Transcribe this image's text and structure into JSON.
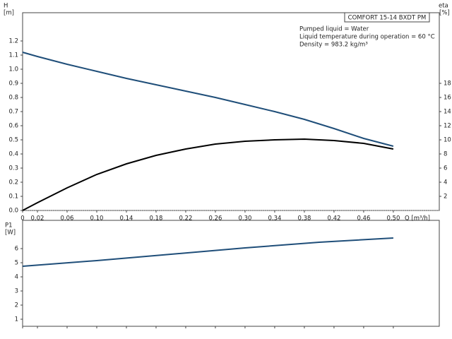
{
  "chart_data": [
    {
      "type": "line",
      "title": "COMFORT 15-14 BXDT PM",
      "annotations": [
        "Pumped liquid = Water",
        "Liquid temperature during operation = 60 °C",
        "Density = 983.2 kg/m³"
      ],
      "y_label": "H",
      "y_unit": "[m]",
      "y2_label": "eta",
      "y2_unit": "[%]",
      "x_label": "Q [m³/h]",
      "x": [
        0,
        0.02,
        0.06,
        0.1,
        0.14,
        0.18,
        0.22,
        0.26,
        0.3,
        0.34,
        0.38,
        0.42,
        0.46,
        0.5
      ],
      "series": [
        {
          "name": "H",
          "color": "#1f4e79",
          "values": [
            1.12,
            1.09,
            1.035,
            0.985,
            0.935,
            0.89,
            0.845,
            0.8,
            0.75,
            0.7,
            0.645,
            0.58,
            0.51,
            0.455
          ]
        },
        {
          "name": "eta",
          "color": "#000000",
          "axis": "y2",
          "values": [
            0,
            1.1,
            3.2,
            5.1,
            6.6,
            7.8,
            8.7,
            9.4,
            9.8,
            10.0,
            10.1,
            9.9,
            9.5,
            8.7
          ]
        }
      ],
      "xlim": [
        0,
        0.562
      ],
      "xticks": [
        0,
        0.02,
        0.06,
        {
          "value": 0.1,
          "label": "0.10"
        },
        0.14,
        0.18,
        0.22,
        0.26,
        {
          "value": 0.3,
          "label": "0.30"
        },
        0.34,
        0.38,
        0.42,
        0.46,
        {
          "value": 0.5,
          "label": "0.50"
        }
      ],
      "ylim": [
        0,
        1.4
      ],
      "yticks": [
        {
          "value": 0,
          "label": "0.0"
        },
        0.1,
        0.2,
        0.3,
        0.4,
        0.5,
        0.6,
        0.7,
        0.8,
        0.9,
        {
          "value": 1,
          "label": "1.0"
        },
        1.1,
        1.2
      ],
      "y2lim": [
        0,
        28
      ],
      "y2ticks": [
        2,
        4,
        6,
        8,
        10,
        12,
        14,
        16,
        18
      ]
    },
    {
      "type": "line",
      "y_label": "P1",
      "y_unit": "[W]",
      "x": [
        0,
        0.1,
        0.2,
        0.3,
        0.4,
        0.5
      ],
      "series": [
        {
          "name": "P1",
          "color": "#1f4e79",
          "values": [
            4.75,
            5.15,
            5.6,
            6.05,
            6.45,
            6.75
          ]
        }
      ],
      "xlim": [
        0,
        0.562
      ],
      "ylim": [
        0.5,
        8
      ],
      "yticks": [
        1,
        2,
        3,
        4,
        5,
        6
      ]
    }
  ]
}
